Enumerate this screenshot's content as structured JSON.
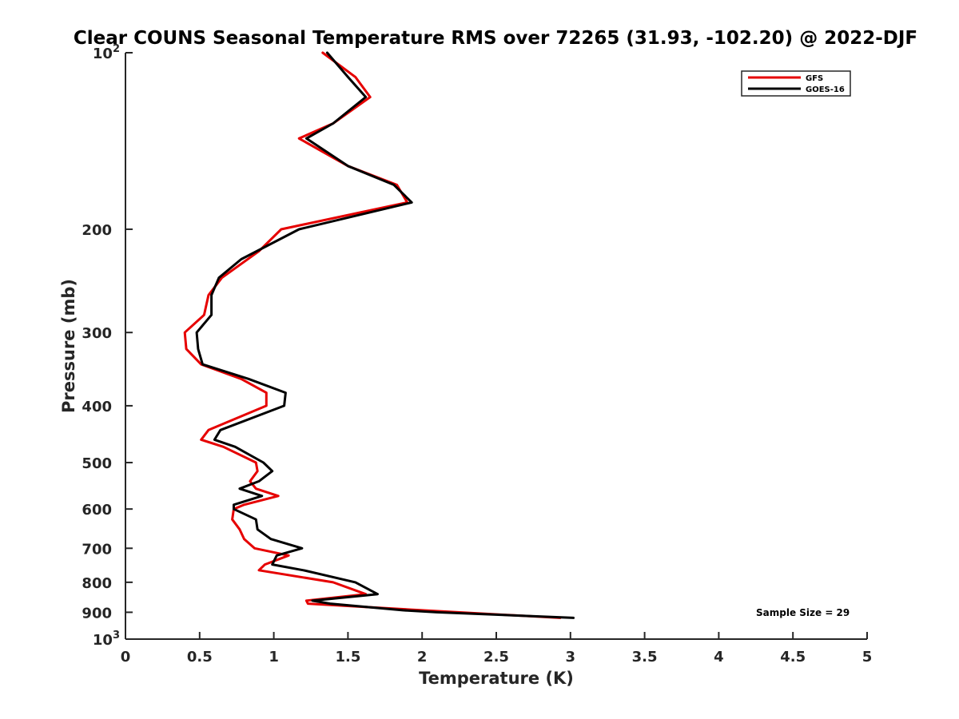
{
  "chart_data": {
    "type": "line",
    "title": "Clear COUNS Seasonal Temperature RMS over 72265 (31.93, -102.20) @ 2022-DJF",
    "xlabel": "Temperature (K)",
    "ylabel": "Pressure (mb)",
    "xlim": [
      0,
      5
    ],
    "ylim": [
      100,
      1000
    ],
    "yscale": "log",
    "y_reversed": true,
    "x_ticks": [
      0,
      0.5,
      1,
      1.5,
      2,
      2.5,
      3,
      3.5,
      4,
      4.5,
      5
    ],
    "x_tick_labels": [
      "0",
      "0.5",
      "1",
      "1.5",
      "2",
      "2.5",
      "3",
      "3.5",
      "4",
      "4.5",
      "5"
    ],
    "y_ticks": [
      100,
      200,
      300,
      400,
      500,
      600,
      700,
      800,
      900,
      1000
    ],
    "y_tick_labels": [
      {
        "base": "10",
        "exp": "2"
      },
      {
        "base": "200",
        "exp": ""
      },
      {
        "base": "300",
        "exp": ""
      },
      {
        "base": "400",
        "exp": ""
      },
      {
        "base": "500",
        "exp": ""
      },
      {
        "base": "600",
        "exp": ""
      },
      {
        "base": "700",
        "exp": ""
      },
      {
        "base": "800",
        "exp": ""
      },
      {
        "base": "900",
        "exp": ""
      },
      {
        "base": "10",
        "exp": "3"
      }
    ],
    "legend_position": "top-right",
    "annotation": "Sample Size = 29",
    "series": [
      {
        "name": "GFS",
        "color": "#e60000",
        "points": [
          [
            1.33,
            100
          ],
          [
            1.55,
            110
          ],
          [
            1.65,
            119
          ],
          [
            1.4,
            132
          ],
          [
            1.17,
            140
          ],
          [
            1.5,
            156
          ],
          [
            1.83,
            168
          ],
          [
            1.9,
            180
          ],
          [
            1.05,
            200
          ],
          [
            0.9,
            218
          ],
          [
            0.65,
            242
          ],
          [
            0.56,
            259
          ],
          [
            0.53,
            280
          ],
          [
            0.4,
            300
          ],
          [
            0.41,
            320
          ],
          [
            0.51,
            340
          ],
          [
            0.78,
            360
          ],
          [
            0.95,
            380
          ],
          [
            0.95,
            400
          ],
          [
            0.56,
            440
          ],
          [
            0.51,
            457
          ],
          [
            0.66,
            470
          ],
          [
            0.88,
            500
          ],
          [
            0.89,
            517
          ],
          [
            0.84,
            538
          ],
          [
            0.88,
            554
          ],
          [
            1.03,
            570
          ],
          [
            0.8,
            590
          ],
          [
            0.73,
            600
          ],
          [
            0.72,
            625
          ],
          [
            0.77,
            650
          ],
          [
            0.8,
            675
          ],
          [
            0.87,
            700
          ],
          [
            1.1,
            720
          ],
          [
            0.94,
            746
          ],
          [
            0.9,
            763
          ],
          [
            1.4,
            800
          ],
          [
            1.62,
            838
          ],
          [
            1.22,
            860
          ],
          [
            1.23,
            870
          ],
          [
            2.0,
            893
          ],
          [
            2.93,
            920
          ]
        ]
      },
      {
        "name": "GOES-16",
        "color": "#000000",
        "points": [
          [
            1.36,
            100
          ],
          [
            1.5,
            110
          ],
          [
            1.62,
            119
          ],
          [
            1.4,
            132
          ],
          [
            1.22,
            140
          ],
          [
            1.5,
            156
          ],
          [
            1.81,
            168
          ],
          [
            1.93,
            180
          ],
          [
            1.17,
            200
          ],
          [
            0.78,
            225
          ],
          [
            0.63,
            242
          ],
          [
            0.58,
            259
          ],
          [
            0.58,
            280
          ],
          [
            0.48,
            300
          ],
          [
            0.49,
            320
          ],
          [
            0.52,
            340
          ],
          [
            0.83,
            360
          ],
          [
            1.08,
            380
          ],
          [
            1.07,
            400
          ],
          [
            0.64,
            440
          ],
          [
            0.6,
            457
          ],
          [
            0.74,
            470
          ],
          [
            0.93,
            500
          ],
          [
            0.99,
            517
          ],
          [
            0.9,
            538
          ],
          [
            0.77,
            554
          ],
          [
            0.92,
            570
          ],
          [
            0.73,
            590
          ],
          [
            0.73,
            600
          ],
          [
            0.88,
            625
          ],
          [
            0.89,
            650
          ],
          [
            0.98,
            675
          ],
          [
            1.19,
            700
          ],
          [
            1.02,
            720
          ],
          [
            0.99,
            746
          ],
          [
            1.2,
            763
          ],
          [
            1.55,
            800
          ],
          [
            1.7,
            838
          ],
          [
            1.26,
            860
          ],
          [
            1.38,
            870
          ],
          [
            1.87,
            893
          ],
          [
            2.1,
            900
          ],
          [
            3.02,
            920
          ]
        ]
      }
    ]
  }
}
